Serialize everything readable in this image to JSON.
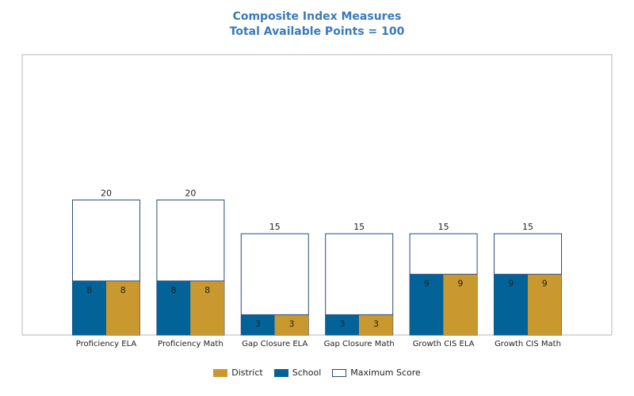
{
  "chart_data": {
    "type": "bar",
    "title": "Composite Index Measures",
    "subtitle": "Total Available Points = 100",
    "categories": [
      "Proficiency ELA",
      "Proficiency Math",
      "Gap Closure ELA",
      "Gap Closure Math",
      "Growth CIS ELA",
      "Growth CIS Math"
    ],
    "series": [
      {
        "name": "Maximum Score",
        "values": [
          20,
          20,
          15,
          15,
          15,
          15
        ]
      },
      {
        "name": "School",
        "values": [
          8,
          8,
          3,
          3,
          9,
          9
        ]
      },
      {
        "name": "District",
        "values": [
          8,
          8,
          3,
          3,
          9,
          9
        ]
      }
    ],
    "ylim": [
      0,
      33
    ],
    "grid": false,
    "legend_position": "bottom",
    "colors": {
      "maximum": "#ffffff",
      "maximum_border": "#2e4a7a",
      "school": "#036399",
      "district": "#c9992f",
      "frame": "#b7b7b7"
    }
  },
  "legend": [
    {
      "label": "District",
      "color_key": "district"
    },
    {
      "label": "School",
      "color_key": "school"
    },
    {
      "label": "Maximum Score",
      "color_key": "maximum"
    }
  ]
}
